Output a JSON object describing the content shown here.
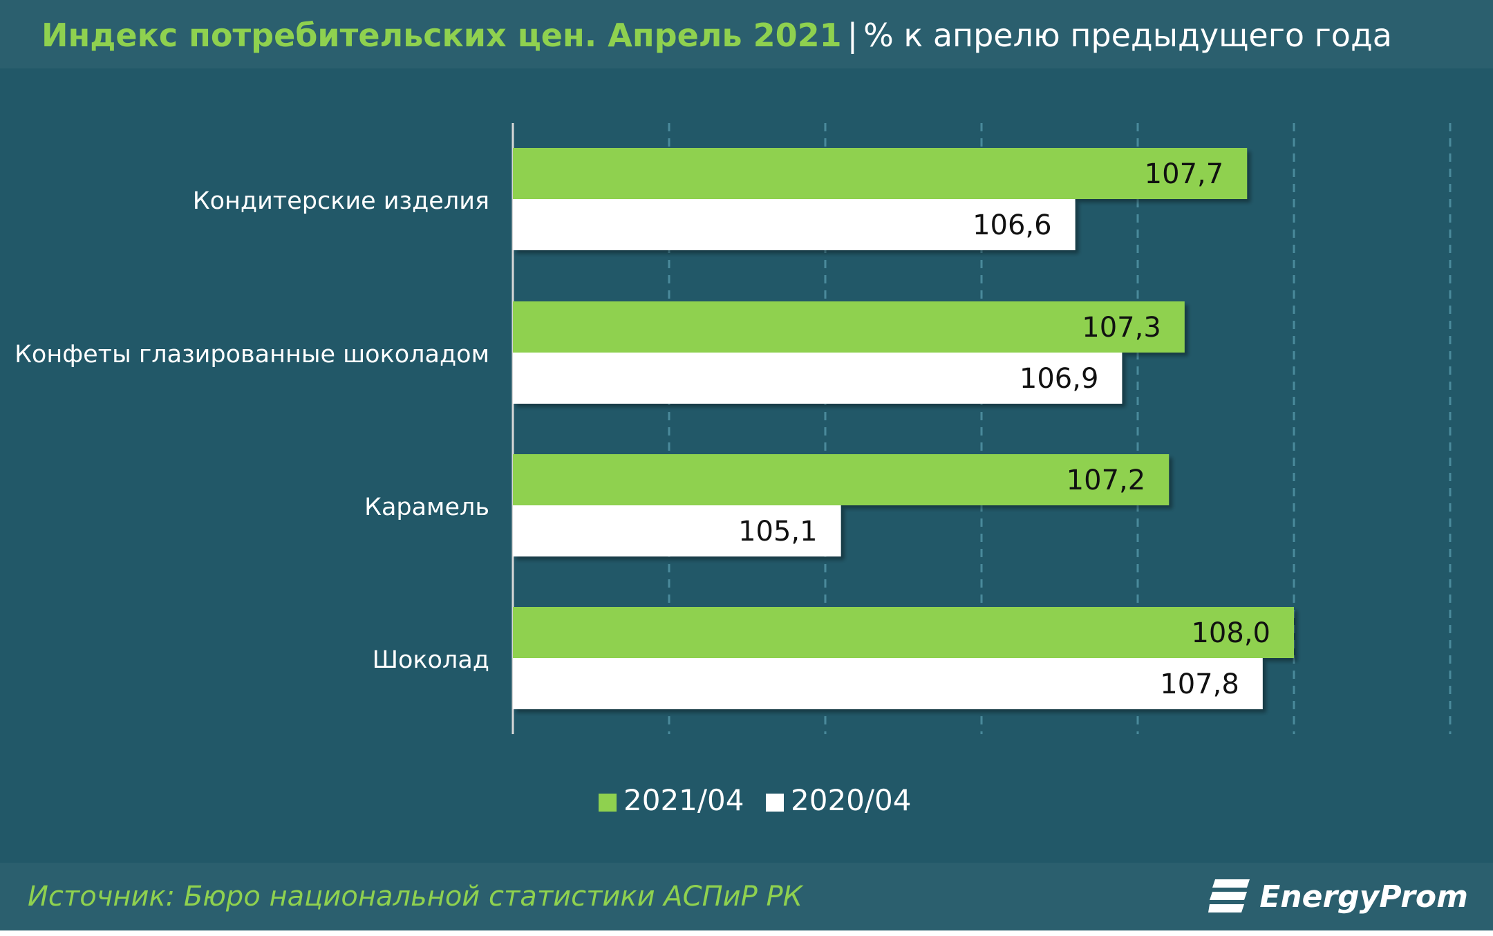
{
  "header": {
    "title": "Индекс потребительских цен. Апрель 2021",
    "separator": "|",
    "subtitle": "% к апрелю предыдущего  года"
  },
  "footer": {
    "source": "Источник: Бюро национальной  статистики АСПиР РК",
    "brand": "EnergyProm",
    "brand_icon": "energyprom-logo-icon"
  },
  "colors": {
    "background": "#225868",
    "panel": "#2b5f6e",
    "series_2021": "#8fd14f",
    "series_2020": "#ffffff",
    "gridline": "#4a8a9b",
    "axis": "#d8d8d8"
  },
  "chart_data": {
    "type": "bar",
    "orientation": "horizontal",
    "title": "Индекс потребительских цен. Апрель 2021",
    "subtitle": "% к апрелю предыдущего  года",
    "categories": [
      "Кондитерские изделия",
      "Конфеты глазированные шоколадом",
      "Карамель",
      "Шоколад"
    ],
    "series": [
      {
        "name": "2021/04",
        "values": [
          107.7,
          107.3,
          107.2,
          108.0
        ],
        "labels": [
          "107,7",
          "107,3",
          "107,2",
          "108,0"
        ],
        "color": "#8fd14f"
      },
      {
        "name": "2020/04",
        "values": [
          106.6,
          106.9,
          105.1,
          107.8
        ],
        "labels": [
          "106,6",
          "106,9",
          "105,1",
          "107,8"
        ],
        "color": "#ffffff"
      }
    ],
    "xlim": [
      103.0,
      108.0
    ],
    "grid": true,
    "legend": "bottom-center"
  }
}
